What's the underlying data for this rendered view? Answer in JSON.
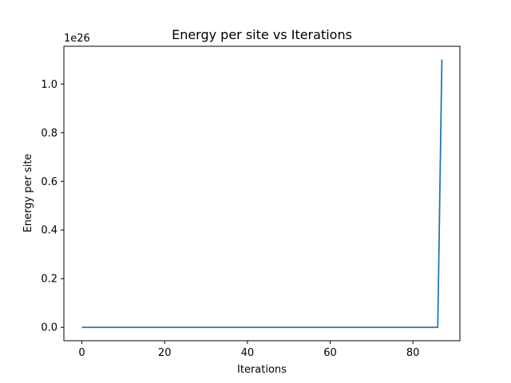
{
  "chart_data": {
    "type": "line",
    "title": "Energy per site vs Iterations",
    "xlabel": "Iterations",
    "ylabel": "Energy per site",
    "y_offset_label": "1e26",
    "xlim": [
      -4.35,
      91.35
    ],
    "ylim": [
      -0.055,
      1.155
    ],
    "x_ticks": [
      0,
      20,
      40,
      60,
      80
    ],
    "x_tick_labels": [
      "0",
      "20",
      "40",
      "60",
      "80"
    ],
    "y_ticks": [
      0.0,
      0.2,
      0.4,
      0.6,
      0.8,
      1.0
    ],
    "y_tick_labels": [
      "0.0",
      "0.2",
      "0.4",
      "0.6",
      "0.8",
      "1.0"
    ],
    "grid": false,
    "series": [
      {
        "color": "#1f77b4",
        "x": [
          0,
          10,
          20,
          30,
          40,
          50,
          60,
          70,
          80,
          86,
          87
        ],
        "y": [
          0,
          0,
          0,
          0,
          0,
          0,
          0,
          0,
          0,
          0,
          1.1
        ]
      }
    ]
  }
}
